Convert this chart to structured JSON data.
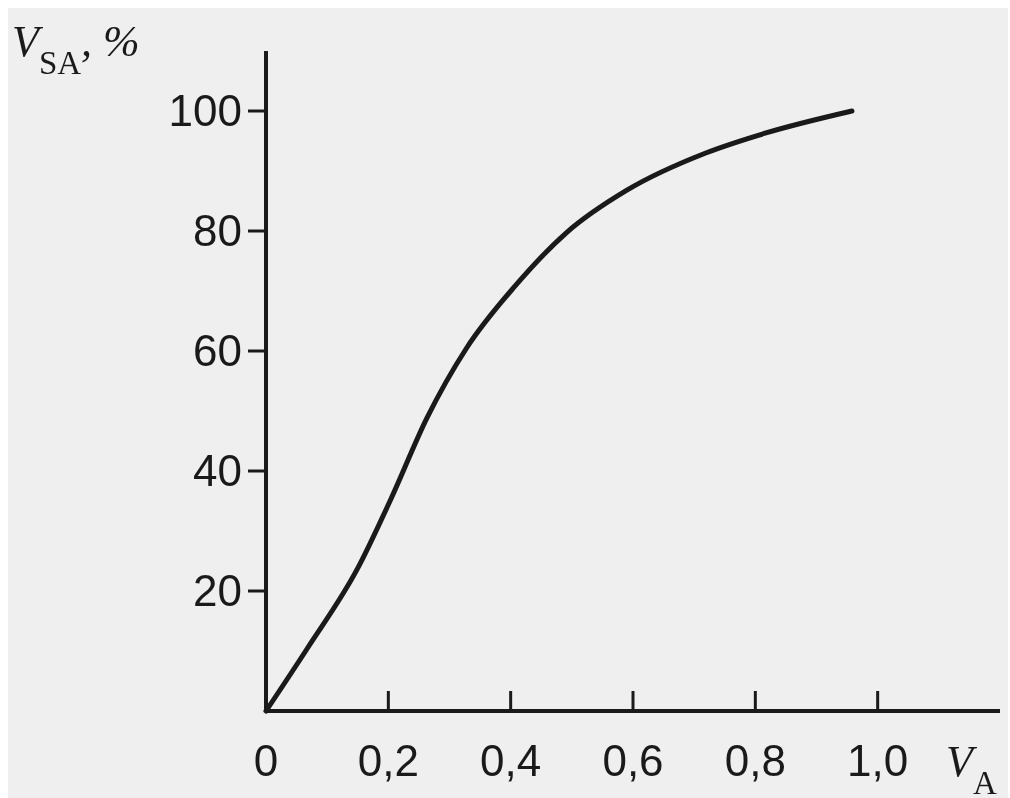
{
  "chart_data": {
    "type": "line",
    "xlabel": "V$_{A}$",
    "ylabel": "V$_{SA}$, %",
    "x": [
      0,
      0.068,
      0.15,
      0.205,
      0.263,
      0.328,
      0.407,
      0.491,
      0.59,
      0.719,
      0.816,
      0.958
    ],
    "series": [
      {
        "color": "#1a1a1a",
        "values": [
          0,
          10.5,
          23.8,
          35.5,
          48.8,
          60.5,
          70.8,
          79.7,
          86.8,
          93,
          96.3,
          100
        ]
      }
    ],
    "xlim": [
      0,
      1.2
    ],
    "ylim": [
      0,
      110
    ],
    "xticks": [
      {
        "value": 0,
        "label": "0"
      },
      {
        "value": 0.2,
        "label": "0,2"
      },
      {
        "value": 0.4,
        "label": "0,4"
      },
      {
        "value": 0.6,
        "label": "0,6"
      },
      {
        "value": 0.8,
        "label": "0,8"
      },
      {
        "value": 1.0,
        "label": "1,0"
      }
    ],
    "yticks": [
      20,
      40,
      60,
      80,
      100
    ],
    "grid": false,
    "marker": "none",
    "line_style": "solid"
  }
}
